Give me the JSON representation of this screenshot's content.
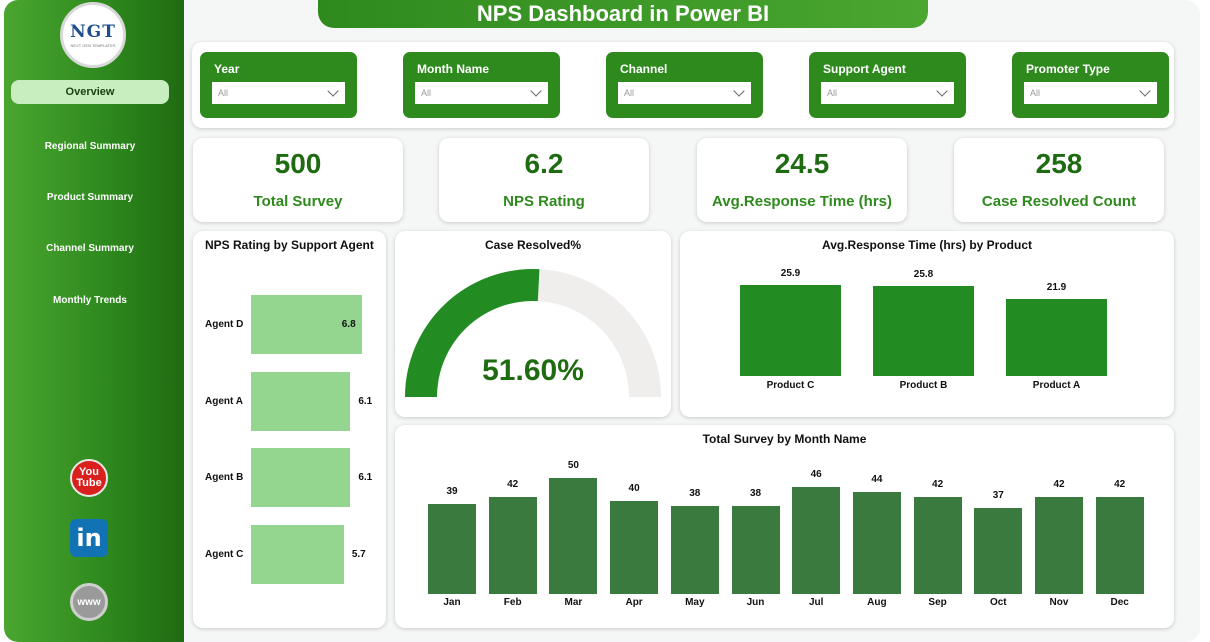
{
  "sidebar": {
    "logo_text": "NGT",
    "logo_sub": "NEXT GEN TEMPLATES",
    "nav": [
      {
        "label": "Overview",
        "active": true
      },
      {
        "label": "Regional Summary",
        "active": false
      },
      {
        "label": "Product Summary",
        "active": false
      },
      {
        "label": "Channel Summary",
        "active": false
      },
      {
        "label": "Monthly Trends",
        "active": false
      }
    ],
    "social": {
      "youtube_top": "You",
      "youtube_bottom": "Tube",
      "linkedin": "in",
      "web": "www"
    }
  },
  "header": {
    "title": "NPS Dashboard in Power BI"
  },
  "filters": [
    {
      "label": "Year",
      "value": "All"
    },
    {
      "label": "Month Name",
      "value": "All"
    },
    {
      "label": "Channel",
      "value": "All"
    },
    {
      "label": "Support Agent",
      "value": "All"
    },
    {
      "label": "Promoter Type",
      "value": "All"
    }
  ],
  "kpis": [
    {
      "value": "500",
      "label": "Total Survey"
    },
    {
      "value": "6.2",
      "label": "NPS Rating"
    },
    {
      "value": "24.5",
      "label": "Avg.Response Time (hrs)"
    },
    {
      "value": "258",
      "label": "Case Resolved Count"
    }
  ],
  "colors": {
    "primary": "#2f8a1e",
    "bar_light": "#94d690",
    "bar_mid": "#228b22",
    "bar_dark": "#3a7a3e",
    "gauge_bg": "#f0eeed"
  },
  "chart_data": [
    {
      "type": "bar",
      "orientation": "horizontal",
      "title": "NPS Rating by Support Agent",
      "categories": [
        "Agent D",
        "Agent A",
        "Agent B",
        "Agent C"
      ],
      "values": [
        6.8,
        6.1,
        6.1,
        5.7
      ],
      "value_labels": [
        "6.8",
        "6.1",
        "6.1",
        "5.7"
      ],
      "xlim": [
        0,
        7
      ]
    },
    {
      "type": "gauge",
      "title": "Case Resolved%",
      "value": 51.6,
      "display": "51.60%",
      "range": [
        0,
        100
      ]
    },
    {
      "type": "bar",
      "title": "Avg.Response Time (hrs) by Product",
      "categories": [
        "Product C",
        "Product B",
        "Product A"
      ],
      "values": [
        25.9,
        25.8,
        21.9
      ],
      "value_labels": [
        "25.9",
        "25.8",
        "21.9"
      ],
      "ylim": [
        0,
        30
      ]
    },
    {
      "type": "bar",
      "title": "Total Survey by Month Name",
      "categories": [
        "Jan",
        "Feb",
        "Mar",
        "Apr",
        "May",
        "Jun",
        "Jul",
        "Aug",
        "Sep",
        "Oct",
        "Nov",
        "Dec"
      ],
      "values": [
        39,
        42,
        50,
        40,
        38,
        38,
        46,
        44,
        42,
        37,
        42,
        42
      ],
      "value_labels": [
        "39",
        "42",
        "50",
        "40",
        "38",
        "38",
        "46",
        "44",
        "42",
        "37",
        "42",
        "42"
      ],
      "ylim": [
        0,
        50
      ]
    }
  ]
}
